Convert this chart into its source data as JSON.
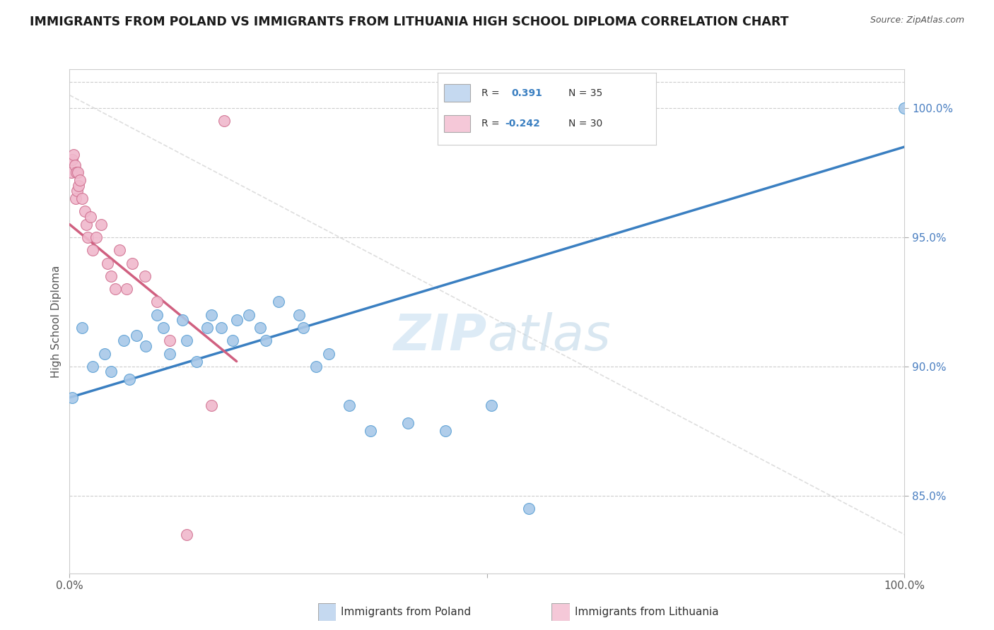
{
  "title": "IMMIGRANTS FROM POLAND VS IMMIGRANTS FROM LITHUANIA HIGH SCHOOL DIPLOMA CORRELATION CHART",
  "source": "Source: ZipAtlas.com",
  "ylabel": "High School Diploma",
  "x_min": 0.0,
  "x_max": 100.0,
  "y_min": 82.0,
  "y_max": 101.5,
  "y_ticks": [
    85.0,
    90.0,
    95.0,
    100.0
  ],
  "r_poland": 0.391,
  "n_poland": 35,
  "r_lithuania": -0.242,
  "n_lithuania": 30,
  "color_poland": "#a8c8e8",
  "color_poland_edge": "#5a9fd4",
  "color_poland_line": "#3a7fc1",
  "color_lithuania": "#f0b8cc",
  "color_lithuania_edge": "#d07090",
  "color_lithuania_line": "#d06080",
  "color_diag": "#d0d0d0",
  "color_grid": "#cccccc",
  "legend_box_color_poland": "#c5d9f0",
  "legend_box_color_lithuania": "#f5c8d8",
  "poland_x": [
    0.3,
    1.5,
    2.8,
    4.2,
    5.0,
    6.5,
    7.2,
    8.0,
    9.1,
    10.5,
    11.2,
    12.0,
    13.5,
    14.0,
    15.2,
    16.5,
    17.0,
    18.2,
    19.5,
    20.0,
    21.5,
    22.8,
    23.5,
    25.0,
    27.5,
    28.0,
    29.5,
    31.0,
    33.5,
    36.0,
    40.5,
    45.0,
    50.5,
    55.0,
    100.0
  ],
  "poland_y": [
    88.8,
    91.5,
    90.0,
    90.5,
    89.8,
    91.0,
    89.5,
    91.2,
    90.8,
    92.0,
    91.5,
    90.5,
    91.8,
    91.0,
    90.2,
    91.5,
    92.0,
    91.5,
    91.0,
    91.8,
    92.0,
    91.5,
    91.0,
    92.5,
    92.0,
    91.5,
    90.0,
    90.5,
    88.5,
    87.5,
    87.8,
    87.5,
    88.5,
    84.5,
    100.0
  ],
  "lithuania_x": [
    0.2,
    0.3,
    0.5,
    0.6,
    0.7,
    0.8,
    0.9,
    1.0,
    1.1,
    1.2,
    1.5,
    1.8,
    2.0,
    2.2,
    2.5,
    2.8,
    3.2,
    3.8,
    4.5,
    5.0,
    5.5,
    6.0,
    6.8,
    7.5,
    9.0,
    10.5,
    12.0,
    14.0,
    17.0,
    18.5
  ],
  "lithuania_y": [
    97.5,
    98.0,
    98.2,
    97.8,
    96.5,
    97.5,
    96.8,
    97.5,
    97.0,
    97.2,
    96.5,
    96.0,
    95.5,
    95.0,
    95.8,
    94.5,
    95.0,
    95.5,
    94.0,
    93.5,
    93.0,
    94.5,
    93.0,
    94.0,
    93.5,
    92.5,
    91.0,
    83.5,
    88.5,
    99.5
  ],
  "blue_line_x0": 0.0,
  "blue_line_y0": 88.8,
  "blue_line_x1": 100.0,
  "blue_line_y1": 98.5,
  "pink_line_x0": 0.0,
  "pink_line_y0": 95.5,
  "pink_line_x1": 20.0,
  "pink_line_y1": 90.2,
  "diag_x0": 0.0,
  "diag_y0": 100.5,
  "diag_x1": 100.0,
  "diag_y1": 83.5
}
